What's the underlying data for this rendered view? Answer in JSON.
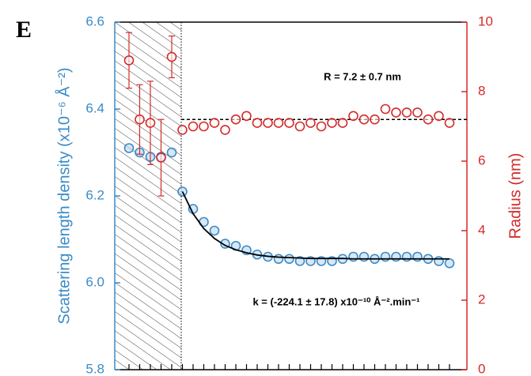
{
  "chart_data": {
    "type": "scatter",
    "panel_label": "E",
    "ylabel": "Scattering length density (x10⁻⁶ Å⁻²)",
    "y2label": "Radius (nm)",
    "annotations": [
      "R = 7.2 ± 0.7 nm",
      "k = (-224.1 ± 17.8) x10⁻¹⁰ Å⁻².min⁻¹"
    ],
    "categories": [
      null,
      null,
      null,
      null,
      null,
      null,
      null,
      null,
      null,
      null,
      null,
      null,
      null,
      null,
      null,
      null,
      null,
      null,
      null,
      null,
      null,
      null,
      null,
      null,
      null,
      null,
      null,
      null,
      null,
      null,
      null
    ],
    "series": [
      {
        "color": "#3b8bc6",
        "values": [
          6.31,
          6.3,
          6.29,
          6.29,
          6.3,
          6.21,
          6.17,
          6.14,
          6.12,
          6.09,
          6.085,
          6.075,
          6.065,
          6.06,
          6.055,
          6.055,
          6.05,
          6.05,
          6.05,
          6.05,
          6.055,
          6.06,
          6.06,
          6.055,
          6.06,
          6.06,
          6.06,
          6.06,
          6.055,
          6.05,
          6.045
        ]
      },
      {
        "color": "#d42a2a",
        "axis": "y2",
        "values": [
          8.9,
          7.2,
          7.1,
          6.1,
          9.0,
          6.9,
          7.0,
          7.0,
          7.1,
          6.9,
          7.2,
          7.3,
          7.1,
          7.1,
          7.1,
          7.1,
          7.0,
          7.1,
          7.0,
          7.1,
          7.1,
          7.3,
          7.2,
          7.2,
          7.5,
          7.4,
          7.4,
          7.4,
          7.2,
          7.3,
          7.1
        ],
        "errors": [
          0.8,
          1.0,
          1.2,
          1.1,
          0.6,
          null,
          null,
          null,
          null,
          null,
          null,
          null,
          null,
          null,
          null,
          null,
          null,
          null,
          null,
          null,
          null,
          null,
          null,
          null,
          null,
          null,
          null,
          null,
          null,
          null,
          null
        ]
      }
    ],
    "fit": {
      "color": "#000000",
      "values": [
        null,
        null,
        null,
        null,
        null,
        6.21,
        6.159,
        6.125,
        6.102,
        6.086,
        6.076,
        6.069,
        6.064,
        6.061,
        6.059,
        6.058,
        6.057,
        6.056,
        6.056,
        6.056,
        6.056,
        6.055,
        6.055,
        6.055,
        6.055,
        6.055,
        6.055,
        6.055,
        6.055,
        6.055,
        6.055
      ]
    },
    "reference_line": {
      "value": 7.2,
      "axis": "y2",
      "color": "#000000"
    },
    "ylim": [
      5.8,
      6.6
    ],
    "yticks": [
      5.8,
      {
        "value": 6,
        "label": "6.0"
      },
      6.2,
      6.4,
      6.6
    ],
    "y2lim": [
      0,
      10
    ],
    "y2ticks": [
      0,
      2,
      4,
      6,
      8,
      10
    ]
  }
}
